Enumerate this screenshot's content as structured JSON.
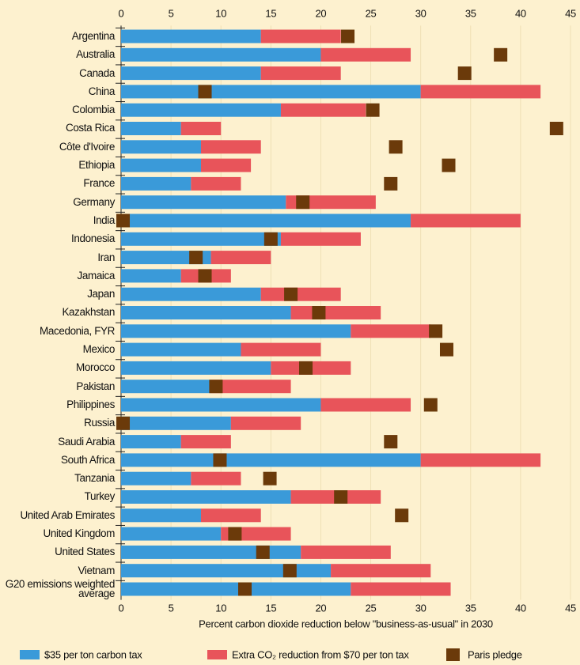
{
  "chart_data": {
    "type": "stacked-bar-horizontal",
    "xlabel": "Percent carbon dioxide reduction below \"business-as-usual\" in 2030",
    "categories": [
      "Argentina",
      "Australia",
      "Canada",
      "China",
      "Colombia",
      "Costa Rica",
      "Côte d'Ivoire",
      "Ethiopia",
      "France",
      "Germany",
      "India",
      "Indonesia",
      "Iran",
      "Jamaica",
      "Japan",
      "Kazakhstan",
      "Macedonia, FYR",
      "Mexico",
      "Morocco",
      "Pakistan",
      "Philippines",
      "Russia",
      "Saudi Arabia",
      "South Africa",
      "Tanzania",
      "Turkey",
      "United Arab Emirates",
      "United Kingdom",
      "United States",
      "Vietnam",
      "G20 emissions weighted average"
    ],
    "series": [
      {
        "name": "$35 per ton carbon tax",
        "color": "#3a9ad9",
        "stack": true,
        "values": [
          14,
          20,
          14,
          30,
          16,
          6,
          8,
          8,
          7,
          16.5,
          29,
          16,
          9,
          6,
          14,
          17,
          23,
          12,
          15,
          9,
          20,
          11,
          6,
          30,
          7,
          17,
          8,
          10,
          18,
          21,
          23
        ]
      },
      {
        "name": "Extra CO₂ reduction from $70 per ton tax",
        "color": "#e8545a",
        "stack": true,
        "values": [
          8,
          9,
          8,
          12,
          8.5,
          4,
          6,
          5,
          5,
          9,
          11,
          8,
          6,
          5,
          8,
          9,
          8,
          8,
          8,
          8,
          9,
          7,
          5,
          12,
          5,
          9,
          6,
          7,
          9,
          10,
          10
        ]
      },
      {
        "name": "Paris pledge",
        "color": "#6b3a0a",
        "marker": "square",
        "values": [
          22.7,
          38,
          34.4,
          8.4,
          25.2,
          43.6,
          27.5,
          32.8,
          27,
          18.2,
          0.2,
          15,
          7.5,
          8.4,
          17,
          19.8,
          31.5,
          32.6,
          18.5,
          9.5,
          31,
          0.2,
          27,
          9.9,
          14.9,
          22,
          28.1,
          11.4,
          14.2,
          16.9,
          12.4
        ]
      }
    ],
    "xlim": [
      0,
      45
    ],
    "xticks": [
      0,
      5,
      10,
      15,
      20,
      25,
      30,
      35,
      40,
      45
    ],
    "grid": true,
    "legend": "bottom"
  }
}
